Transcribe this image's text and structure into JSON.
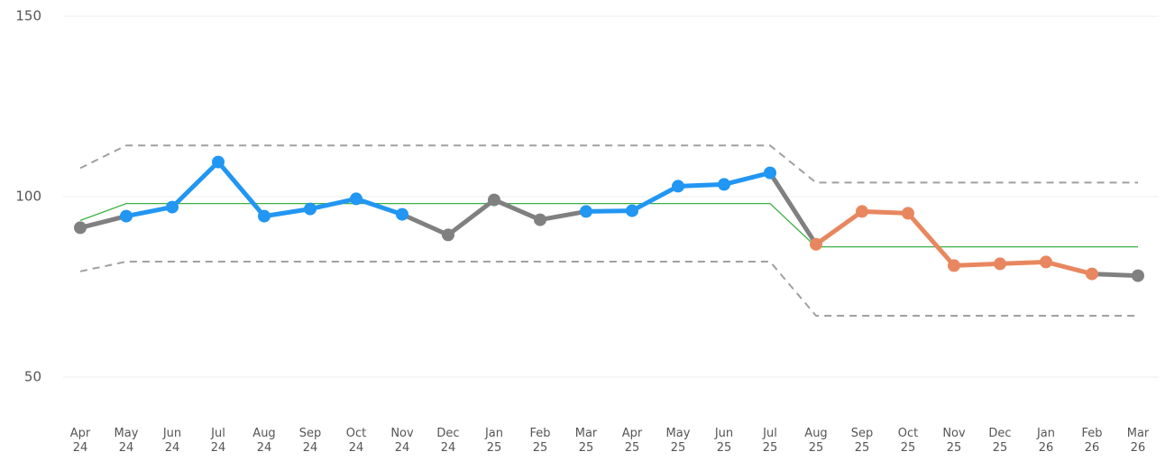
{
  "chart_data": {
    "type": "line",
    "categories": [
      "Apr 24",
      "May 24",
      "Jun 24",
      "Jul 24",
      "Aug 24",
      "Sep 24",
      "Oct 24",
      "Nov 24",
      "Dec 24",
      "Jan 25",
      "Feb 25",
      "Mar 25",
      "Apr 25",
      "May 25",
      "Jun 25",
      "Jul 25",
      "Aug 25",
      "Sep 25",
      "Oct 25",
      "Nov 25",
      "Dec 25",
      "Jan 26",
      "Feb 26",
      "Mar 26"
    ],
    "ylim": [
      44,
      150
    ],
    "yticks": [
      50,
      100,
      150
    ],
    "grid": true,
    "series": [
      {
        "values": [
          91.4,
          94.6,
          97.1,
          109.6,
          94.6,
          96.6,
          99.4,
          95.1,
          89.4,
          99.1,
          93.6,
          95.9,
          96.1,
          102.9,
          103.4,
          106.6,
          86.8,
          95.9,
          95.4,
          80.9,
          81.4,
          81.9,
          78.6,
          78.1
        ],
        "colors": [
          "#808080",
          "#2196f3",
          "#2196f3",
          "#2196f3",
          "#2196f3",
          "#2196f3",
          "#2196f3",
          "#2196f3",
          "#808080",
          "#808080",
          "#808080",
          "#2196f3",
          "#2196f3",
          "#2196f3",
          "#2196f3",
          "#2196f3",
          "#e8875f",
          "#e8875f",
          "#e8875f",
          "#e8875f",
          "#e8875f",
          "#e8875f",
          "#e8875f",
          "#808080"
        ],
        "color": "#808080"
      },
      {
        "values": [
          93.4,
          98.1,
          98.1,
          98.1,
          98.1,
          98.1,
          98.1,
          98.1,
          98.1,
          98.1,
          98.1,
          98.1,
          98.1,
          98.1,
          98.1,
          98.1,
          86.1,
          86.1,
          86.1,
          86.1,
          86.1,
          86.1,
          86.1,
          86.1
        ],
        "color": "#3cb043",
        "dashed": false
      },
      {
        "values": [
          107.9,
          114.2,
          114.2,
          114.2,
          114.2,
          114.2,
          114.2,
          114.2,
          114.2,
          114.2,
          114.2,
          114.2,
          114.2,
          114.2,
          114.2,
          114.2,
          103.9,
          103.9,
          103.9,
          103.9,
          103.9,
          103.9,
          103.9,
          103.9
        ],
        "color": "#a0a0a0",
        "dashed": true
      },
      {
        "values": [
          79.3,
          82.0,
          82.0,
          82.0,
          82.0,
          82.0,
          82.0,
          82.0,
          82.0,
          82.0,
          82.0,
          82.0,
          82.0,
          82.0,
          82.0,
          82.0,
          67.0,
          67.0,
          67.0,
          67.0,
          67.0,
          67.0,
          67.0,
          67.0
        ],
        "color": "#a0a0a0",
        "dashed": true
      }
    ]
  }
}
